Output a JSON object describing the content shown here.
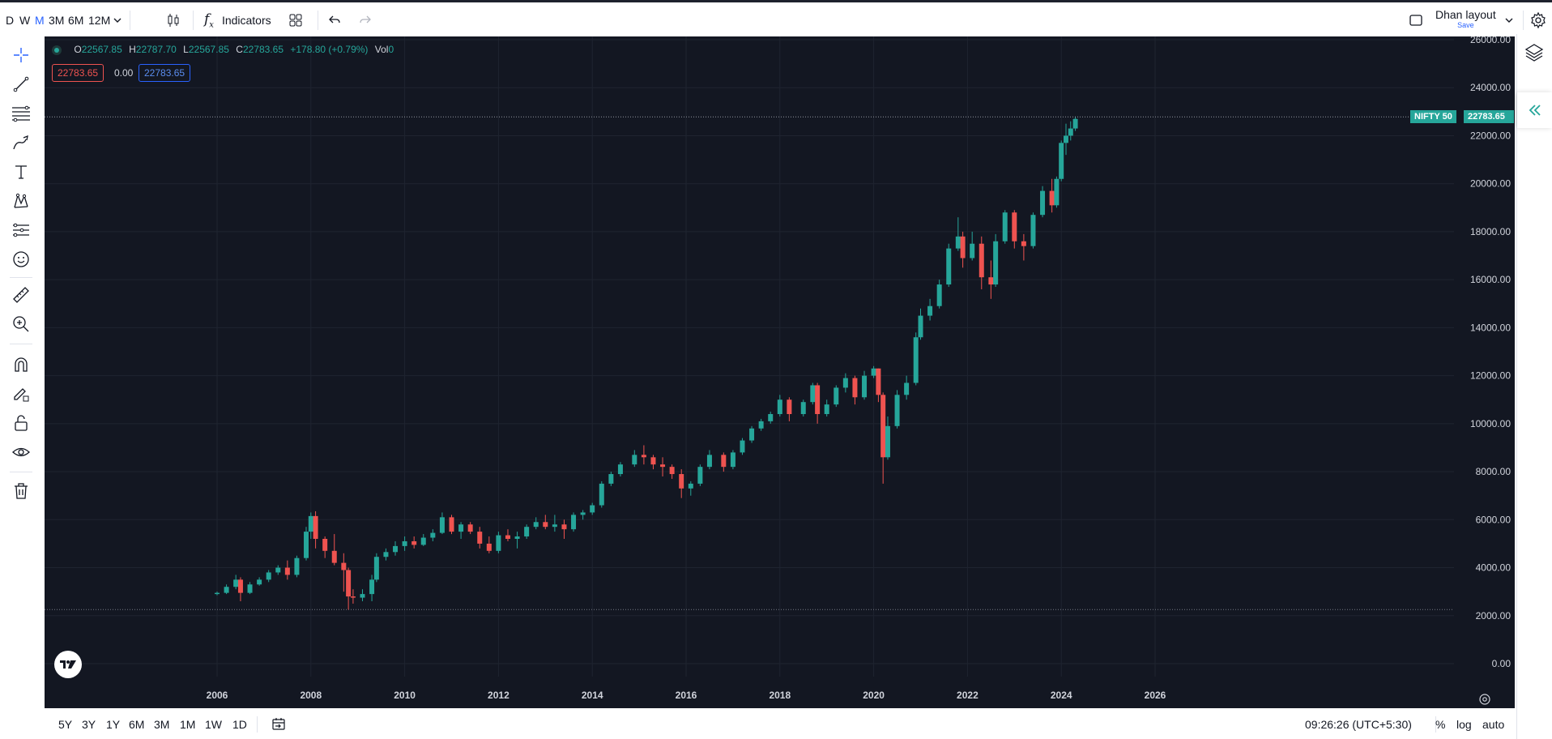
{
  "toolbar": {
    "intervals": [
      "D",
      "W",
      "M",
      "3M",
      "6M",
      "12M"
    ],
    "active_interval": "M",
    "indicators_label": "Indicators",
    "layout_name": "Dhan layout",
    "layout_save": "Save"
  },
  "legend": {
    "o_label": "O",
    "o_value": "22567.85",
    "h_label": "H",
    "h_value": "22787.70",
    "l_label": "L",
    "l_value": "22567.85",
    "c_label": "C",
    "c_value": "22783.65",
    "change": "+178.80 (+0.79%)",
    "vol_label": "Vol",
    "vol_value": "0",
    "pill_sell": "22783.65",
    "pill_spread": "0.00",
    "pill_buy": "22783.65"
  },
  "price_tag": {
    "symbol": "NIFTY 50",
    "price": "22783.65"
  },
  "bottom": {
    "ranges": [
      "5Y",
      "3Y",
      "1Y",
      "6M",
      "3M",
      "1M",
      "1W",
      "1D"
    ],
    "time": "09:26:26 (UTC+5:30)",
    "percent": "%",
    "log": "log",
    "auto": "auto"
  },
  "colors": {
    "up": "#26a69a",
    "down": "#ef5350",
    "bg": "#131722",
    "grid": "#1f2430",
    "accent": "#2962ff"
  },
  "chart_data": {
    "type": "candlestick",
    "ylim": [
      0,
      26000
    ],
    "yticks": [
      0,
      2000,
      4000,
      6000,
      8000,
      10000,
      12000,
      14000,
      16000,
      18000,
      20000,
      22000,
      24000,
      26000
    ],
    "ytick_labels": [
      "0.00",
      "2000.00",
      "4000.00",
      "6000.00",
      "8000.00",
      "10000.00",
      "12000.00",
      "14000.00",
      "16000.00",
      "18000.00",
      "20000.00",
      "22000.00",
      "24000.00",
      "26000.00"
    ],
    "xlim": [
      2003.0,
      2029.0
    ],
    "xticks": [
      2006,
      2008,
      2010,
      2012,
      2014,
      2016,
      2018,
      2020,
      2022,
      2024,
      2026
    ],
    "xtick_labels": [
      "2006",
      "2008",
      "2010",
      "2012",
      "2014",
      "2016",
      "2018",
      "2020",
      "2022",
      "2024",
      "2026"
    ],
    "last_price": 22783.65,
    "low_line": 2252,
    "series": [
      [
        2006.0,
        2900,
        3000,
        2850,
        2950
      ],
      [
        2006.2,
        2950,
        3300,
        2900,
        3200
      ],
      [
        2006.4,
        3200,
        3700,
        3100,
        3500
      ],
      [
        2006.5,
        3500,
        3600,
        2600,
        2950
      ],
      [
        2006.7,
        2950,
        3400,
        2900,
        3300
      ],
      [
        2006.9,
        3300,
        3600,
        3250,
        3500
      ],
      [
        2007.1,
        3500,
        3900,
        3400,
        3800
      ],
      [
        2007.3,
        3800,
        4100,
        3700,
        4000
      ],
      [
        2007.5,
        4000,
        4300,
        3500,
        3700
      ],
      [
        2007.7,
        3700,
        4500,
        3600,
        4400
      ],
      [
        2007.9,
        4400,
        5700,
        4300,
        5500
      ],
      [
        2008.0,
        5500,
        6300,
        5200,
        6150
      ],
      [
        2008.1,
        6150,
        6350,
        4800,
        5200
      ],
      [
        2008.3,
        5200,
        5300,
        4400,
        4700
      ],
      [
        2008.5,
        4700,
        5400,
        4100,
        4200
      ],
      [
        2008.7,
        4200,
        4600,
        3000,
        3900
      ],
      [
        2008.8,
        3900,
        4000,
        2250,
        2800
      ],
      [
        2008.9,
        2800,
        3100,
        2500,
        2750
      ],
      [
        2009.1,
        2750,
        3100,
        2600,
        2900
      ],
      [
        2009.3,
        2900,
        3700,
        2600,
        3500
      ],
      [
        2009.4,
        3500,
        4600,
        3400,
        4450
      ],
      [
        2009.6,
        4450,
        4800,
        4300,
        4650
      ],
      [
        2009.8,
        4650,
        5100,
        4500,
        4900
      ],
      [
        2010.0,
        4900,
        5300,
        4700,
        5100
      ],
      [
        2010.2,
        5100,
        5300,
        4800,
        4950
      ],
      [
        2010.4,
        4950,
        5400,
        4900,
        5250
      ],
      [
        2010.6,
        5250,
        5600,
        5100,
        5450
      ],
      [
        2010.8,
        5450,
        6300,
        5400,
        6100
      ],
      [
        2011.0,
        6100,
        6200,
        5400,
        5500
      ],
      [
        2011.2,
        5500,
        5900,
        5200,
        5800
      ],
      [
        2011.4,
        5800,
        5900,
        5400,
        5500
      ],
      [
        2011.6,
        5500,
        5700,
        4800,
        5000
      ],
      [
        2011.8,
        5000,
        5300,
        4600,
        4700
      ],
      [
        2012.0,
        4700,
        5500,
        4600,
        5350
      ],
      [
        2012.2,
        5350,
        5600,
        5100,
        5200
      ],
      [
        2012.4,
        5200,
        5500,
        4800,
        5300
      ],
      [
        2012.6,
        5300,
        5800,
        5200,
        5700
      ],
      [
        2012.8,
        5700,
        6100,
        5600,
        5900
      ],
      [
        2013.0,
        5900,
        6200,
        5600,
        5700
      ],
      [
        2013.2,
        5700,
        6200,
        5500,
        5800
      ],
      [
        2013.4,
        5800,
        6000,
        5200,
        5600
      ],
      [
        2013.6,
        5600,
        6300,
        5500,
        6200
      ],
      [
        2013.8,
        6200,
        6400,
        6000,
        6300
      ],
      [
        2014.0,
        6300,
        6700,
        6200,
        6600
      ],
      [
        2014.2,
        6600,
        7600,
        6500,
        7500
      ],
      [
        2014.4,
        7500,
        8000,
        7400,
        7900
      ],
      [
        2014.6,
        7900,
        8400,
        7800,
        8300
      ],
      [
        2014.9,
        8300,
        8900,
        8200,
        8700
      ],
      [
        2015.1,
        8700,
        9100,
        8300,
        8600
      ],
      [
        2015.3,
        8600,
        8700,
        8100,
        8300
      ],
      [
        2015.5,
        8300,
        8600,
        7800,
        8200
      ],
      [
        2015.7,
        8200,
        8300,
        7700,
        7900
      ],
      [
        2015.9,
        7900,
        8100,
        6900,
        7300
      ],
      [
        2016.1,
        7300,
        7600,
        7000,
        7500
      ],
      [
        2016.3,
        7500,
        8300,
        7400,
        8200
      ],
      [
        2016.5,
        8200,
        8900,
        8100,
        8700
      ],
      [
        2016.8,
        8700,
        8800,
        8000,
        8200
      ],
      [
        2017.0,
        8200,
        8900,
        8100,
        8800
      ],
      [
        2017.2,
        8800,
        9400,
        8700,
        9300
      ],
      [
        2017.4,
        9300,
        9900,
        9200,
        9800
      ],
      [
        2017.6,
        9800,
        10200,
        9700,
        10100
      ],
      [
        2017.8,
        10100,
        10500,
        10000,
        10400
      ],
      [
        2018.0,
        10400,
        11200,
        10300,
        11000
      ],
      [
        2018.2,
        11000,
        11100,
        10100,
        10400
      ],
      [
        2018.5,
        10400,
        11000,
        10300,
        10900
      ],
      [
        2018.7,
        10900,
        11700,
        10800,
        11600
      ],
      [
        2018.8,
        11600,
        11700,
        10000,
        10400
      ],
      [
        2019.0,
        10400,
        11000,
        10300,
        10800
      ],
      [
        2019.2,
        10800,
        11600,
        10700,
        11500
      ],
      [
        2019.4,
        11500,
        12100,
        11300,
        11900
      ],
      [
        2019.6,
        11900,
        12000,
        10800,
        11100
      ],
      [
        2019.8,
        11100,
        12200,
        11000,
        12000
      ],
      [
        2020.0,
        12000,
        12400,
        11900,
        12300
      ],
      [
        2020.1,
        12300,
        12300,
        10900,
        11200
      ],
      [
        2020.2,
        11200,
        11300,
        7500,
        8600
      ],
      [
        2020.3,
        8600,
        10300,
        8500,
        9900
      ],
      [
        2020.5,
        9900,
        11400,
        9800,
        11200
      ],
      [
        2020.7,
        11200,
        12000,
        11000,
        11700
      ],
      [
        2020.9,
        11700,
        13800,
        11600,
        13600
      ],
      [
        2021.0,
        13600,
        14800,
        13500,
        14500
      ],
      [
        2021.2,
        14500,
        15200,
        14300,
        14900
      ],
      [
        2021.4,
        14900,
        16000,
        14800,
        15800
      ],
      [
        2021.6,
        15800,
        17500,
        15700,
        17300
      ],
      [
        2021.8,
        17300,
        18600,
        17200,
        17800
      ],
      [
        2021.9,
        17800,
        18000,
        16500,
        16900
      ],
      [
        2022.1,
        16900,
        18000,
        16800,
        17500
      ],
      [
        2022.3,
        17500,
        17800,
        15600,
        16100
      ],
      [
        2022.5,
        16100,
        16800,
        15200,
        15800
      ],
      [
        2022.6,
        15800,
        17900,
        15700,
        17600
      ],
      [
        2022.8,
        17600,
        18900,
        17500,
        18800
      ],
      [
        2023.0,
        18800,
        18900,
        17300,
        17600
      ],
      [
        2023.2,
        17600,
        17900,
        16800,
        17400
      ],
      [
        2023.4,
        17400,
        18800,
        17300,
        18700
      ],
      [
        2023.6,
        18700,
        19900,
        18600,
        19700
      ],
      [
        2023.8,
        19700,
        20200,
        18800,
        19100
      ],
      [
        2023.9,
        19100,
        20300,
        19000,
        20200
      ],
      [
        2024.0,
        20200,
        21800,
        20100,
        21700
      ],
      [
        2024.1,
        21700,
        22500,
        21200,
        22000
      ],
      [
        2024.2,
        22000,
        22600,
        21800,
        22300
      ],
      [
        2024.3,
        22300,
        22800,
        22200,
        22700
      ]
    ]
  }
}
